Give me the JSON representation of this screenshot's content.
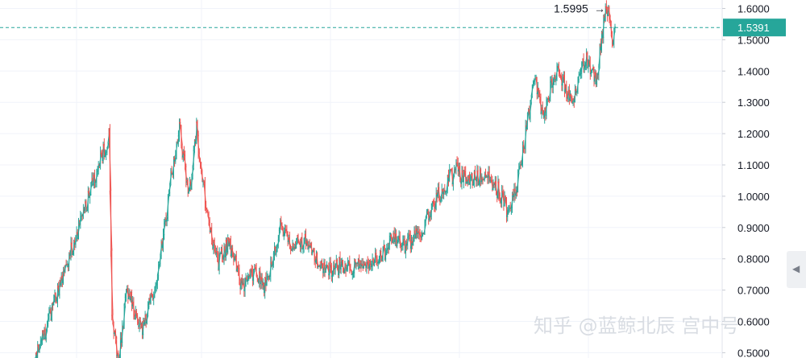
{
  "chart_data": {
    "type": "candlestick",
    "y_axis": {
      "position": "right",
      "ticks": [
        "1.6000",
        "1.5000",
        "1.4000",
        "1.3000",
        "1.2000",
        "1.1000",
        "1.0000",
        "0.9000",
        "0.8000",
        "0.7000",
        "0.6000",
        "0.5000"
      ],
      "ylim": [
        0.48,
        1.63
      ]
    },
    "grid": true,
    "colors": {
      "up": "#26a69a",
      "down": "#ef5350",
      "current_line": "#26a69a"
    },
    "current_price": {
      "label": "1.5391",
      "value": 1.5391
    },
    "high_marker": {
      "label": "1.5995",
      "value": 1.5995
    },
    "segments": [
      [
        0.45,
        1.2,
        80
      ],
      [
        1.2,
        0.6,
        3
      ],
      [
        0.6,
        0.48,
        7
      ],
      [
        0.48,
        0.7,
        9
      ],
      [
        0.7,
        0.57,
        15
      ],
      [
        0.57,
        0.72,
        16
      ],
      [
        0.72,
        1.05,
        15
      ],
      [
        1.05,
        1.22,
        9
      ],
      [
        1.22,
        0.99,
        10
      ],
      [
        0.99,
        1.21,
        8
      ],
      [
        1.21,
        0.99,
        9
      ],
      [
        0.99,
        0.78,
        13
      ],
      [
        0.78,
        0.85,
        12
      ],
      [
        0.85,
        0.7,
        15
      ],
      [
        0.7,
        0.76,
        12
      ],
      [
        0.76,
        0.7,
        10
      ],
      [
        0.7,
        0.9,
        17
      ],
      [
        0.9,
        0.84,
        10
      ],
      [
        0.84,
        0.86,
        15
      ],
      [
        0.86,
        0.8,
        12
      ],
      [
        0.8,
        0.76,
        10
      ],
      [
        0.76,
        0.78,
        20
      ],
      [
        0.78,
        0.77,
        12
      ],
      [
        0.77,
        0.8,
        13
      ],
      [
        0.8,
        0.79,
        11
      ],
      [
        0.79,
        0.86,
        15
      ],
      [
        0.86,
        0.84,
        12
      ],
      [
        0.84,
        0.9,
        20
      ],
      [
        0.9,
        1.0,
        16
      ],
      [
        1.0,
        1.08,
        18
      ],
      [
        1.08,
        1.05,
        16
      ],
      [
        1.05,
        1.07,
        14
      ],
      [
        1.07,
        1.01,
        17
      ],
      [
        1.01,
        0.95,
        8
      ],
      [
        0.95,
        1.05,
        11
      ],
      [
        1.05,
        1.2,
        8
      ],
      [
        1.2,
        1.38,
        10
      ],
      [
        1.38,
        1.25,
        9
      ],
      [
        1.25,
        1.42,
        14
      ],
      [
        1.42,
        1.29,
        15
      ],
      [
        1.29,
        1.45,
        15
      ],
      [
        1.45,
        1.37,
        11
      ],
      [
        1.37,
        1.58,
        9
      ],
      [
        1.58,
        1.6,
        4
      ],
      [
        1.6,
        1.5,
        5
      ],
      [
        1.5,
        1.54,
        2
      ]
    ]
  },
  "watermark": {
    "text": "知乎 @蓝鲸北辰 宫中号"
  },
  "side_tab": {
    "glyph": "◀"
  }
}
